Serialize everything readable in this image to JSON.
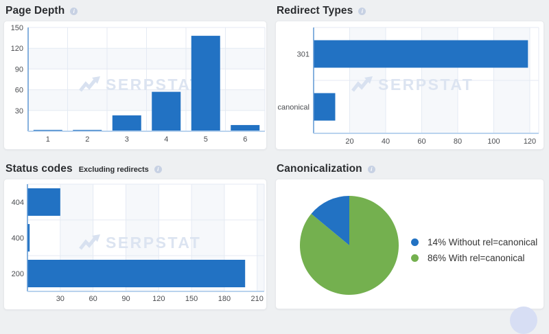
{
  "watermark_text": "SERPSTAT",
  "info_icon_glyph": "i",
  "panels": {
    "page_depth": {
      "title": "Page Depth"
    },
    "redirect_types": {
      "title": "Redirect Types"
    },
    "status_codes": {
      "title": "Status codes",
      "subtitle": "Excluding redirects"
    },
    "canonicalization": {
      "title": "Canonicalization"
    }
  },
  "colors": {
    "bar_blue": "#2272c3",
    "pie_blue": "#2272c3",
    "pie_green": "#74b04f",
    "band": "#f6f8fb",
    "grid": "#e4eaf3",
    "axis": "#5e97d4",
    "baseline": "#b9d3ee",
    "tick_text": "#4a4c50",
    "watermark_fill": "#dce4f1"
  },
  "chart_data": [
    {
      "id": "page_depth",
      "type": "bar",
      "orientation": "vertical",
      "title": "Page Depth",
      "categories": [
        "1",
        "2",
        "3",
        "4",
        "5",
        "6"
      ],
      "values": [
        2,
        2,
        23,
        57,
        138,
        9
      ],
      "xlabel": "",
      "ylabel": "",
      "ylim": [
        0,
        150
      ],
      "yticks": [
        30,
        60,
        90,
        120,
        150
      ],
      "grid": true,
      "legend": false
    },
    {
      "id": "redirect_types",
      "type": "bar",
      "orientation": "horizontal",
      "title": "Redirect Types",
      "categories": [
        "301",
        "canonical"
      ],
      "values": [
        119,
        12
      ],
      "xlabel": "",
      "ylabel": "",
      "xlim": [
        0,
        125
      ],
      "xticks": [
        20,
        40,
        60,
        80,
        100,
        120
      ],
      "grid": true,
      "legend": false
    },
    {
      "id": "status_codes",
      "type": "bar",
      "orientation": "horizontal",
      "title": "Status codes (Excluding redirects)",
      "categories": [
        "404",
        "400",
        "200"
      ],
      "values": [
        30,
        2,
        199
      ],
      "xlabel": "",
      "ylabel": "",
      "xlim": [
        0,
        216
      ],
      "xticks": [
        30,
        60,
        90,
        120,
        150,
        180,
        210
      ],
      "grid": true,
      "legend": false
    },
    {
      "id": "canonicalization",
      "type": "pie",
      "title": "Canonicalization",
      "start_angle": "12 o'clock, first slice sweeps counter-clockwise",
      "slices": [
        {
          "label": "14% Without rel=canonical",
          "value": 14,
          "color": "#2272c3"
        },
        {
          "label": "86% With rel=canonical",
          "value": 86,
          "color": "#74b04f"
        }
      ],
      "legend_position": "right"
    }
  ]
}
